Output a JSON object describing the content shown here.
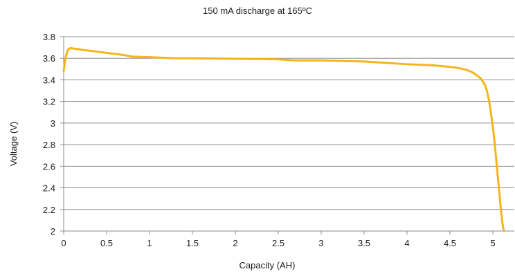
{
  "chart_data": {
    "type": "line",
    "title": "150 mA discharge at 165ºC",
    "xlabel": "Capacity (AH)",
    "ylabel": "Voltage (V)",
    "xlim": [
      0,
      5.25
    ],
    "ylim": [
      2,
      3.8
    ],
    "x_ticks": [
      0,
      0.5,
      1,
      1.5,
      2,
      2.5,
      3,
      3.5,
      4,
      4.5,
      5
    ],
    "x_tick_labels": [
      "0",
      "0.5",
      "1",
      "1.5",
      "2",
      "2.5",
      "3",
      "3.5",
      "4",
      "4.5",
      "5"
    ],
    "y_ticks": [
      2,
      2.2,
      2.4,
      2.6,
      2.8,
      3,
      3.2,
      3.4,
      3.6,
      3.8
    ],
    "y_tick_labels": [
      "2",
      "2.2",
      "2.4",
      "2.6",
      "2.8",
      "3",
      "3.2",
      "3.4",
      "3.6",
      "3.8"
    ],
    "grid": "horizontal",
    "legend": "none",
    "line_color": "#f5b51a",
    "series": [
      {
        "x": [
          0,
          0.02,
          0.05,
          0.08,
          0.12,
          0.2,
          0.3,
          0.5,
          0.7,
          0.8,
          1.0,
          1.3,
          1.5,
          2.0,
          2.5,
          2.7,
          3.0,
          3.5,
          3.8,
          4.0,
          4.3,
          4.5,
          4.6,
          4.7,
          4.75,
          4.8,
          4.85,
          4.88,
          4.91,
          4.93,
          4.95,
          4.97,
          4.99,
          5.01,
          5.03,
          5.05,
          5.07,
          5.09,
          5.11,
          5.12,
          5.13
        ],
        "y": [
          3.48,
          3.6,
          3.68,
          3.695,
          3.69,
          3.68,
          3.67,
          3.65,
          3.63,
          3.615,
          3.61,
          3.6,
          3.6,
          3.595,
          3.59,
          3.58,
          3.58,
          3.57,
          3.555,
          3.545,
          3.535,
          3.52,
          3.51,
          3.49,
          3.475,
          3.45,
          3.42,
          3.39,
          3.35,
          3.3,
          3.23,
          3.14,
          3.02,
          2.9,
          2.74,
          2.57,
          2.4,
          2.23,
          2.08,
          2.03,
          2.0
        ]
      }
    ]
  }
}
